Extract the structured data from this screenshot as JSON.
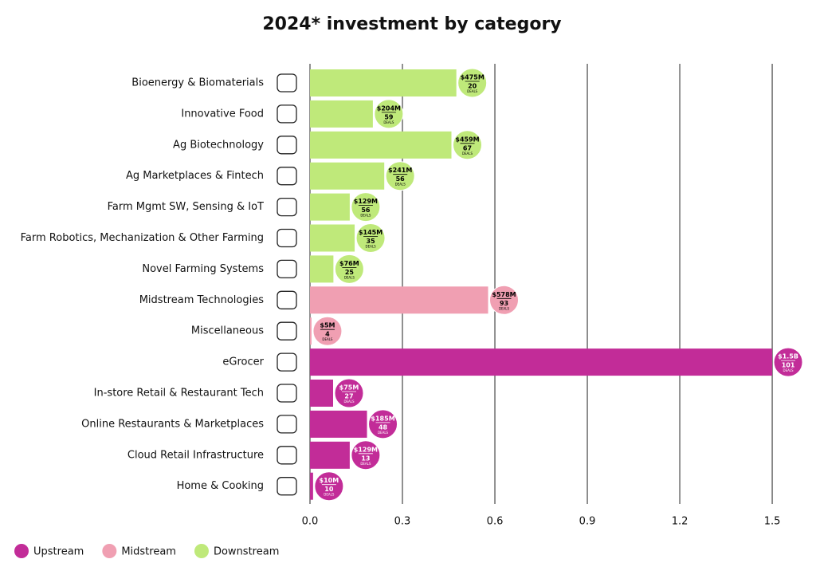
{
  "chart_data": {
    "type": "bar",
    "orientation": "horizontal",
    "title": "2024* investment by category",
    "categories": [
      "Bioenergy & Biomaterials",
      "Innovative Food",
      "Ag Biotechnology",
      "Ag Marketplaces & Fintech",
      "Farm Mgmt SW, Sensing & IoT",
      "Farm Robotics, Mechanization & Other Farming",
      "Novel Farming Systems",
      "Midstream Technologies",
      "Miscellaneous",
      "eGrocer",
      "In-store Retail & Restaurant Tech",
      "Online Restaurants & Marketplaces",
      "Cloud Retail Infrastructure",
      "Home & Cooking"
    ],
    "series": [
      {
        "name": "Upstream",
        "color": "#c22c98",
        "text_color": "#ffffff",
        "values": [
          null,
          null,
          null,
          null,
          null,
          null,
          null,
          null,
          null,
          1.5,
          0.075,
          0.185,
          0.129,
          0.01
        ],
        "value_labels": [
          null,
          null,
          null,
          null,
          null,
          null,
          null,
          null,
          null,
          "$1.5B",
          "$75M",
          "$185M",
          "$129M",
          "$10M"
        ],
        "deals": [
          null,
          null,
          null,
          null,
          null,
          null,
          null,
          null,
          null,
          101,
          27,
          48,
          13,
          10
        ]
      },
      {
        "name": "Midstream",
        "color": "#f09fb2",
        "text_color": "#000000",
        "values": [
          null,
          null,
          null,
          null,
          null,
          null,
          null,
          0.578,
          0.005,
          null,
          null,
          null,
          null,
          null
        ],
        "value_labels": [
          null,
          null,
          null,
          null,
          null,
          null,
          null,
          "$578M",
          "$5M",
          null,
          null,
          null,
          null,
          null
        ],
        "deals": [
          null,
          null,
          null,
          null,
          null,
          null,
          null,
          93,
          4,
          null,
          null,
          null,
          null,
          null
        ]
      },
      {
        "name": "Downstream",
        "color": "#bfe97a",
        "text_color": "#000000",
        "values": [
          0.475,
          0.204,
          0.459,
          0.241,
          0.129,
          0.145,
          0.076,
          null,
          null,
          null,
          null,
          null,
          null,
          null
        ],
        "value_labels": [
          "$475M",
          "$204M",
          "$459M",
          "$241M",
          "$129M",
          "$145M",
          "$76M",
          null,
          null,
          null,
          null,
          null,
          null,
          null
        ],
        "deals": [
          20,
          59,
          67,
          56,
          56,
          35,
          25,
          null,
          null,
          null,
          null,
          null,
          null,
          null
        ]
      }
    ],
    "deals_label": "DEALS",
    "xlim": [
      0,
      1.6
    ],
    "xticks": [
      {
        "value": 0,
        "label": "0.0"
      },
      0.3,
      0.6,
      0.9,
      1.2,
      1.5
    ],
    "grid": true,
    "legend": "bottom-left"
  }
}
